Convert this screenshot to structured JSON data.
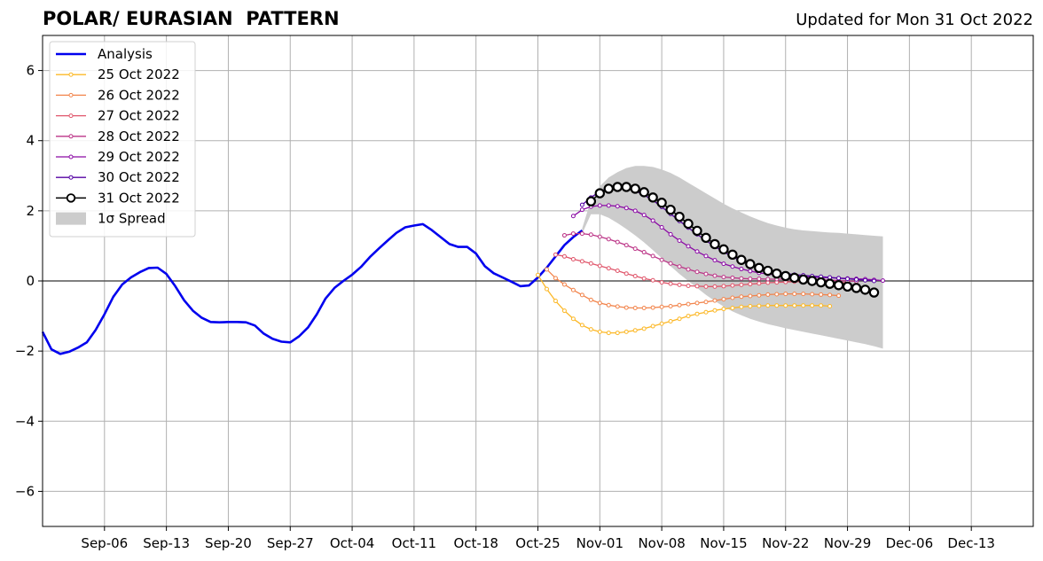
{
  "header": {
    "title": "POLAR/ EURASIAN  PATTERN",
    "updated": "Updated for Mon 31 Oct 2022"
  },
  "chart_data": {
    "type": "line",
    "title": "POLAR/ EURASIAN  PATTERN",
    "subtitle": "Updated for Mon 31 Oct 2022",
    "xlabel": "",
    "ylabel": "",
    "x_start": "2022-08-30",
    "xlim": [
      "2022-08-30",
      "2022-12-20"
    ],
    "ylim": [
      -7,
      7
    ],
    "x_ticks": [
      "Sep-06",
      "Sep-13",
      "Sep-20",
      "Sep-27",
      "Oct-04",
      "Oct-11",
      "Oct-18",
      "Oct-25",
      "Nov-01",
      "Nov-08",
      "Nov-15",
      "Nov-22",
      "Nov-29",
      "Dec-06",
      "Dec-13"
    ],
    "y_ticks": [
      6,
      4,
      2,
      0,
      -2,
      -4,
      -6
    ],
    "y_tick_labels": [
      "6",
      "4",
      "2",
      "0",
      "−2",
      "−4",
      "−6"
    ],
    "grid": true,
    "legend_position": "top-left",
    "analysis": {
      "name": "Analysis",
      "color": "#0000ee",
      "start": "2022-08-30",
      "values": [
        -1.45,
        -1.95,
        -2.08,
        -2.02,
        -1.9,
        -1.75,
        -1.4,
        -0.95,
        -0.45,
        -0.1,
        0.1,
        0.25,
        0.37,
        0.38,
        0.2,
        -0.15,
        -0.55,
        -0.85,
        -1.05,
        -1.17,
        -1.18,
        -1.17,
        -1.17,
        -1.18,
        -1.27,
        -1.5,
        -1.65,
        -1.73,
        -1.75,
        -1.58,
        -1.33,
        -0.95,
        -0.5,
        -0.2,
        0.0,
        0.18,
        0.4,
        0.68,
        0.92,
        1.15,
        1.37,
        1.53,
        1.58,
        1.62,
        1.45,
        1.25,
        1.05,
        0.97,
        0.97,
        0.78,
        0.42,
        0.22,
        0.1,
        -0.02,
        -0.15,
        -0.13,
        0.1,
        0.38,
        0.7,
        1.02,
        1.25,
        1.44
      ]
    },
    "forecasts": [
      {
        "name": "25 Oct 2022",
        "color": "#fcb827",
        "start": "2022-10-25",
        "values": [
          0.17,
          -0.23,
          -0.57,
          -0.85,
          -1.08,
          -1.26,
          -1.38,
          -1.45,
          -1.48,
          -1.48,
          -1.45,
          -1.41,
          -1.36,
          -1.29,
          -1.22,
          -1.15,
          -1.08,
          -1.0,
          -0.94,
          -0.89,
          -0.84,
          -0.8,
          -0.77,
          -0.74,
          -0.72,
          -0.71,
          -0.7,
          -0.7,
          -0.7,
          -0.7,
          -0.7,
          -0.7,
          -0.7,
          -0.72
        ]
      },
      {
        "name": "26 Oct 2022",
        "color": "#f2844b",
        "start": "2022-10-26",
        "values": [
          0.33,
          0.08,
          -0.1,
          -0.26,
          -0.4,
          -0.54,
          -0.63,
          -0.69,
          -0.73,
          -0.76,
          -0.77,
          -0.77,
          -0.76,
          -0.74,
          -0.72,
          -0.69,
          -0.66,
          -0.63,
          -0.6,
          -0.56,
          -0.52,
          -0.48,
          -0.45,
          -0.43,
          -0.41,
          -0.39,
          -0.38,
          -0.37,
          -0.37,
          -0.37,
          -0.38,
          -0.39,
          -0.4,
          -0.42
        ]
      },
      {
        "name": "27 Oct 2022",
        "color": "#e0566b",
        "start": "2022-10-27",
        "values": [
          0.75,
          0.7,
          0.62,
          0.56,
          0.5,
          0.43,
          0.36,
          0.29,
          0.21,
          0.14,
          0.07,
          0.02,
          -0.04,
          -0.08,
          -0.11,
          -0.14,
          -0.15,
          -0.16,
          -0.16,
          -0.15,
          -0.13,
          -0.11,
          -0.09,
          -0.07,
          -0.05,
          -0.04,
          -0.03,
          -0.02,
          -0.02,
          -0.02,
          -0.02,
          -0.03,
          -0.04,
          -0.05
        ]
      },
      {
        "name": "28 Oct 2022",
        "color": "#bc3587",
        "start": "2022-10-28",
        "values": [
          1.3,
          1.35,
          1.35,
          1.32,
          1.26,
          1.19,
          1.11,
          1.02,
          0.92,
          0.82,
          0.71,
          0.6,
          0.5,
          0.41,
          0.33,
          0.26,
          0.2,
          0.15,
          0.11,
          0.09,
          0.07,
          0.06,
          0.06,
          0.05,
          0.05,
          0.05,
          0.05,
          0.05,
          0.04,
          0.03,
          0.02,
          0.01,
          0.0,
          -0.01
        ]
      },
      {
        "name": "29 Oct 2022",
        "color": "#8b0aa5",
        "start": "2022-10-29",
        "values": [
          1.85,
          2.03,
          2.12,
          2.15,
          2.15,
          2.13,
          2.08,
          2.0,
          1.88,
          1.72,
          1.53,
          1.33,
          1.15,
          0.99,
          0.84,
          0.71,
          0.59,
          0.49,
          0.41,
          0.34,
          0.28,
          0.23,
          0.2,
          0.17,
          0.15,
          0.13,
          0.12,
          0.11,
          0.1,
          0.09,
          0.08,
          0.07,
          0.06,
          0.05,
          0.03,
          0.01
        ]
      },
      {
        "name": "30 Oct 2022",
        "color": "#5402a3",
        "start": "2022-10-30",
        "values": [
          2.17,
          2.38,
          2.55,
          2.65,
          2.68,
          2.65,
          2.57,
          2.45,
          2.3,
          2.11,
          1.91,
          1.71,
          1.52,
          1.33,
          1.15,
          0.98,
          0.83,
          0.69,
          0.56,
          0.46,
          0.37,
          0.3,
          0.25,
          0.21,
          0.18,
          0.16,
          0.14,
          0.12,
          0.1,
          0.08,
          0.06,
          0.04,
          0.02,
          0.0
        ]
      }
    ],
    "latest": {
      "name": "31 Oct 2022",
      "color": "#000000",
      "start": "2022-10-31",
      "values": [
        2.27,
        2.5,
        2.63,
        2.68,
        2.68,
        2.63,
        2.53,
        2.38,
        2.23,
        2.03,
        1.83,
        1.63,
        1.43,
        1.23,
        1.05,
        0.9,
        0.75,
        0.6,
        0.48,
        0.37,
        0.29,
        0.21,
        0.14,
        0.09,
        0.04,
        0.0,
        -0.04,
        -0.08,
        -0.12,
        -0.16,
        -0.2,
        -0.25,
        -0.33
      ]
    },
    "spread": {
      "name": "1σ Spread",
      "color": "#cccccc",
      "start": "2022-10-30",
      "upper": [
        1.5,
        2.3,
        2.7,
        2.95,
        3.1,
        3.22,
        3.28,
        3.28,
        3.25,
        3.18,
        3.08,
        2.95,
        2.8,
        2.65,
        2.5,
        2.35,
        2.2,
        2.07,
        1.95,
        1.84,
        1.74,
        1.65,
        1.58,
        1.52,
        1.47,
        1.44,
        1.42,
        1.4,
        1.38,
        1.37,
        1.35,
        1.33,
        1.31,
        1.29,
        1.27
      ],
      "lower": [
        1.35,
        1.9,
        1.9,
        1.8,
        1.65,
        1.48,
        1.3,
        1.1,
        0.88,
        0.65,
        0.42,
        0.2,
        0.0,
        -0.2,
        -0.4,
        -0.57,
        -0.73,
        -0.87,
        -0.98,
        -1.08,
        -1.16,
        -1.23,
        -1.29,
        -1.35,
        -1.4,
        -1.45,
        -1.5,
        -1.55,
        -1.6,
        -1.65,
        -1.7,
        -1.75,
        -1.8,
        -1.86,
        -1.93
      ]
    }
  }
}
